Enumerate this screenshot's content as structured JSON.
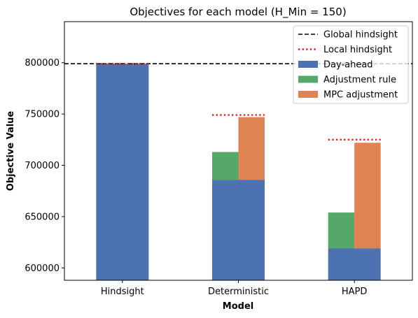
{
  "chart_data": {
    "type": "bar",
    "title": "Objectives for each model (H_Min = 150)",
    "xlabel": "Model",
    "ylabel": "Objective Value",
    "categories": [
      "Hindsight",
      "Deterministic",
      "HAPD"
    ],
    "ylim": [
      588000,
      840000
    ],
    "yticks": [
      600000,
      650000,
      700000,
      750000,
      800000
    ],
    "ytick_labels": [
      "600000",
      "650000",
      "700000",
      "750000",
      "800000"
    ],
    "series": [
      {
        "name": "Day-ahead",
        "color": "#4c72b0",
        "values": [
          799000,
          686000,
          619000
        ]
      },
      {
        "name": "Adjustment rule",
        "color": "#55a868",
        "values": [
          null,
          713000,
          654000
        ]
      },
      {
        "name": "MPC adjustment",
        "color": "#dd8452",
        "values": [
          null,
          747000,
          722000
        ]
      }
    ],
    "reference_lines": {
      "global_hindsight": {
        "name": "Global hindsight",
        "value": 799000,
        "color": "#000000",
        "style": "dashed"
      },
      "local_hindsight": {
        "name": "Local hindsight",
        "color": "#d62728",
        "style": "dotted",
        "values": [
          799000,
          749000,
          725000
        ]
      }
    },
    "legend": {
      "position": "upper right",
      "items": [
        {
          "label": "Global hindsight",
          "kind": "dashed-line",
          "color": "#000000"
        },
        {
          "label": "Local hindsight",
          "kind": "dotted-line",
          "color": "#d62728"
        },
        {
          "label": "Day-ahead",
          "kind": "patch",
          "color": "#4c72b0"
        },
        {
          "label": "Adjustment rule",
          "kind": "patch",
          "color": "#55a868"
        },
        {
          "label": "MPC adjustment",
          "kind": "patch",
          "color": "#dd8452"
        }
      ]
    },
    "grid": false
  }
}
